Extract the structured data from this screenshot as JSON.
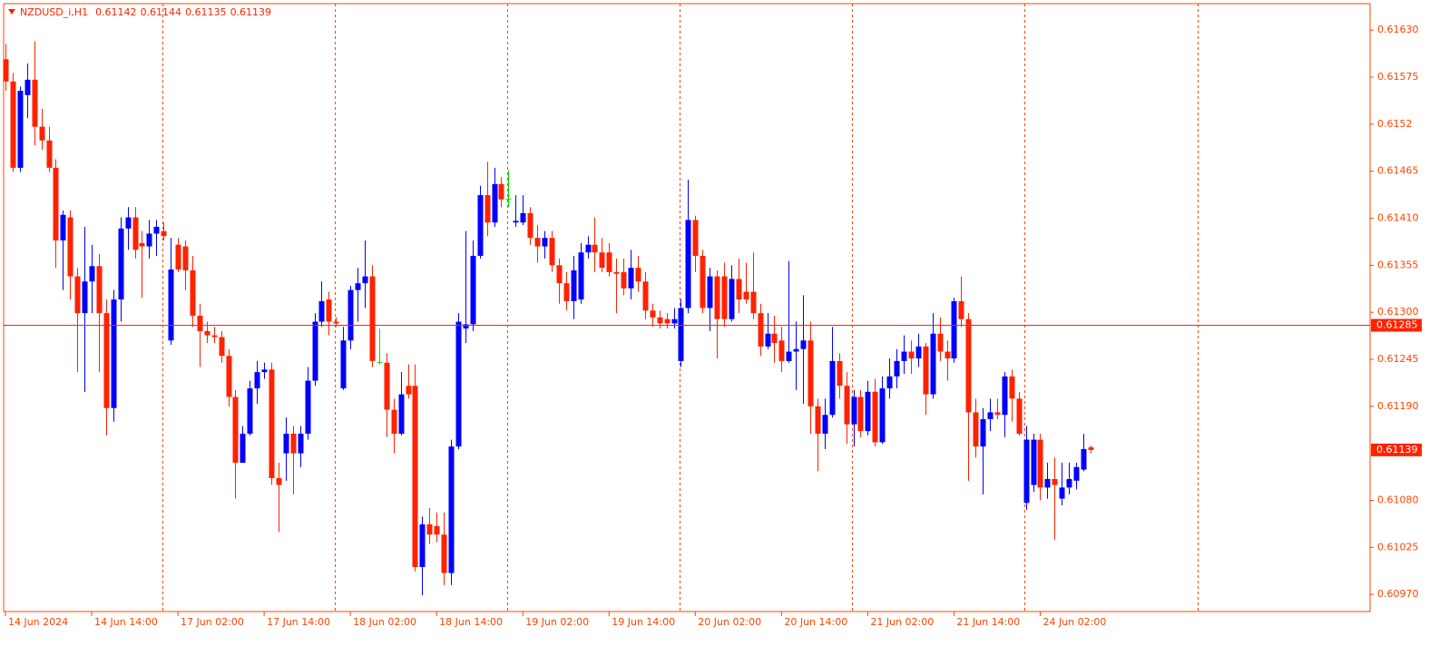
{
  "chart_data": {
    "type": "candlestick",
    "symbol": "NZDUSD_i,H1",
    "up_color": "#0000ff",
    "down_color": "#ff2200",
    "doji_color": "#00e000",
    "axis_color": "#ff4500",
    "separator_color": "#ff4500",
    "open": [
      0.61596,
      0.6157,
      0.61469,
      0.61554,
      0.61572,
      0.61517,
      0.61501,
      0.61469,
      0.61384,
      0.61411,
      0.61342,
      0.61299,
      0.61336,
      0.61354,
      0.61299,
      0.61188,
      0.61315,
      0.61398,
      0.61411,
      0.61381,
      0.61377,
      0.61392,
      0.61395,
      0.61267,
      0.61379,
      0.61377,
      0.61349,
      0.61296,
      0.61278,
      0.61273,
      0.61271,
      0.61249,
      0.61201,
      0.61124,
      0.61158,
      0.61211,
      0.6123,
      0.61233,
      0.61106,
      0.61135,
      0.61158,
      0.61135,
      0.61158,
      0.6122,
      0.61289,
      0.61315,
      0.61289,
      0.61211,
      0.61267,
      0.61326,
      0.61334,
      0.61342,
      0.61242,
      0.61241,
      0.61186,
      0.61158,
      0.61214,
      0.61214,
      0.61002,
      0.61052,
      0.6105,
      0.6104,
      0.60995,
      0.61143,
      0.61281,
      0.61286,
      0.61366,
      0.61437,
      0.61405,
      0.6145,
      0.61433,
      0.61405,
      0.61405,
      0.61416,
      0.61387,
      0.61377,
      0.61387,
      0.61355,
      0.61334,
      0.61313,
      0.61315,
      0.6137,
      0.61379,
      0.6137,
      0.6137,
      0.61347,
      0.61347,
      0.61328,
      0.61352,
      0.61336,
      0.61302,
      0.61294,
      0.61292,
      0.61287,
      0.61243,
      0.61305,
      0.61408,
      0.61366,
      0.61305,
      0.61342,
      0.61342,
      0.61292,
      0.61339,
      0.61324,
      0.61324,
      0.61299,
      0.6126,
      0.61275,
      0.61267,
      0.61243,
      0.61254,
      0.61257,
      0.61267,
      0.6119,
      0.61158,
      0.6118,
      0.61243,
      0.61214,
      0.61169,
      0.61201,
      0.61161,
      0.61207,
      0.61148,
      0.61211,
      0.61225,
      0.61243,
      0.61254,
      0.61246,
      0.6126,
      0.61204,
      0.61275,
      0.61254,
      0.61246,
      0.61313,
      0.61292,
      0.61183,
      0.61143,
      0.61175,
      0.61183,
      0.6118,
      0.61225,
      0.61199,
      0.61077,
      0.61098,
      0.61151,
      0.61095,
      0.61105,
      0.61082,
      0.61095,
      0.61103,
      0.61116,
      0.61142
    ],
    "high": [
      0.61614,
      0.6158,
      0.61564,
      0.61591,
      0.61617,
      0.61538,
      0.61517,
      0.61479,
      0.61419,
      0.61419,
      0.61352,
      0.614,
      0.61379,
      0.61368,
      0.61315,
      0.61326,
      0.61411,
      0.61423,
      0.61423,
      0.61395,
      0.61408,
      0.61408,
      0.61405,
      0.61387,
      0.61387,
      0.61384,
      0.61366,
      0.6131,
      0.61289,
      0.61283,
      0.61278,
      0.61257,
      0.61209,
      0.61167,
      0.6122,
      0.61243,
      0.61241,
      0.61241,
      0.61124,
      0.61177,
      0.61167,
      0.61167,
      0.61236,
      0.61299,
      0.61336,
      0.61324,
      0.61294,
      0.61283,
      0.61331,
      0.61352,
      0.61384,
      0.61355,
      0.61281,
      0.61252,
      0.61199,
      0.6123,
      0.61239,
      0.61239,
      0.61061,
      0.61071,
      0.61066,
      0.61066,
      0.61151,
      0.61299,
      0.61395,
      0.61384,
      0.61448,
      0.61476,
      0.61469,
      0.61458,
      0.61466,
      0.61437,
      0.61437,
      0.61423,
      0.61402,
      0.61395,
      0.61395,
      0.61363,
      0.61347,
      0.61366,
      0.61381,
      0.61389,
      0.61411,
      0.61387,
      0.61381,
      0.61363,
      0.61363,
      0.61373,
      0.61366,
      0.61347,
      0.6131,
      0.61302,
      0.61299,
      0.61305,
      0.61315,
      0.61455,
      0.61413,
      0.61373,
      0.61352,
      0.61349,
      0.61358,
      0.61355,
      0.61363,
      0.61358,
      0.6137,
      0.6131,
      0.61299,
      0.61296,
      0.61283,
      0.6136,
      0.61289,
      0.6132,
      0.61289,
      0.61199,
      0.61199,
      0.61283,
      0.61252,
      0.6123,
      0.61209,
      0.61209,
      0.6122,
      0.61222,
      0.61225,
      0.61246,
      0.61257,
      0.61273,
      0.61267,
      0.61275,
      0.61264,
      0.61299,
      0.61294,
      0.61267,
      0.61317,
      0.61342,
      0.61299,
      0.61199,
      0.61188,
      0.61199,
      0.61199,
      0.6123,
      0.61233,
      0.61207,
      0.61167,
      0.61158,
      0.61158,
      0.61124,
      0.6113,
      0.61124,
      0.61124,
      0.61124,
      0.61158,
      0.61144
    ],
    "low": [
      0.61559,
      0.61464,
      0.61464,
      0.61527,
      0.61495,
      0.6149,
      0.61464,
      0.61352,
      0.61326,
      0.61315,
      0.6123,
      0.61207,
      0.61299,
      0.6123,
      0.61156,
      0.61172,
      0.61289,
      0.61373,
      0.61363,
      0.61317,
      0.61363,
      0.61366,
      0.61384,
      0.61262,
      0.61347,
      0.61326,
      0.61283,
      0.61236,
      0.61264,
      0.61264,
      0.61241,
      0.6119,
      0.61082,
      0.61124,
      0.61156,
      0.61193,
      0.61222,
      0.61098,
      0.61043,
      0.61103,
      0.61087,
      0.61119,
      0.61151,
      0.61214,
      0.61283,
      0.61273,
      0.61283,
      0.61209,
      0.61257,
      0.61289,
      0.61305,
      0.61236,
      0.61239,
      0.61154,
      0.61135,
      0.61156,
      0.61199,
      0.60997,
      0.60969,
      0.61029,
      0.61031,
      0.60981,
      0.60981,
      0.6114,
      0.61264,
      0.61278,
      0.61363,
      0.61389,
      0.614,
      0.61423,
      0.61423,
      0.614,
      0.61402,
      0.61379,
      0.61358,
      0.61363,
      0.61347,
      0.6131,
      0.61302,
      0.61292,
      0.6131,
      0.61363,
      0.61347,
      0.61347,
      0.61342,
      0.61299,
      0.6132,
      0.61315,
      0.61324,
      0.61292,
      0.61283,
      0.61281,
      0.61281,
      0.61281,
      0.61236,
      0.61299,
      0.61347,
      0.61299,
      0.61278,
      0.61246,
      0.61283,
      0.61289,
      0.61299,
      0.6131,
      0.61292,
      0.61249,
      0.61257,
      0.61241,
      0.6123,
      0.61241,
      0.61209,
      0.61193,
      0.61158,
      0.61114,
      0.6114,
      0.61177,
      0.61199,
      0.61146,
      0.61143,
      0.61154,
      0.61156,
      0.61143,
      0.61146,
      0.61199,
      0.61211,
      0.61228,
      0.61228,
      0.61236,
      0.6118,
      0.61199,
      0.61243,
      0.6122,
      0.61241,
      0.61283,
      0.61103,
      0.6113,
      0.61087,
      0.61161,
      0.61175,
      0.61154,
      0.61172,
      0.61156,
      0.61069,
      0.6109,
      0.6108,
      0.61082,
      0.61034,
      0.61074,
      0.61087,
      0.61093,
      0.61114,
      0.61135
    ],
    "close": [
      0.6157,
      0.61469,
      0.61559,
      0.61572,
      0.61517,
      0.61501,
      0.61469,
      0.61384,
      0.61414,
      0.61342,
      0.61299,
      0.61336,
      0.61354,
      0.61299,
      0.61188,
      0.61315,
      0.61398,
      0.61411,
      0.61373,
      0.61377,
      0.61392,
      0.614,
      0.61389,
      0.6135,
      0.6135,
      0.61349,
      0.61296,
      0.61278,
      0.61273,
      0.61271,
      0.61249,
      0.61201,
      0.61124,
      0.61158,
      0.61211,
      0.6123,
      0.61233,
      0.61106,
      0.61098,
      0.61158,
      0.61135,
      0.61158,
      0.6122,
      0.61289,
      0.61313,
      0.61289,
      0.61287,
      0.61267,
      0.61326,
      0.61334,
      0.61342,
      0.61243,
      0.61242,
      0.61186,
      0.61158,
      0.61204,
      0.61204,
      0.61002,
      0.61052,
      0.6104,
      0.6104,
      0.60995,
      0.61143,
      0.61289,
      0.61286,
      0.61366,
      0.61437,
      0.61405,
      0.6145,
      0.61432,
      0.61433,
      0.61407,
      0.61416,
      0.61387,
      0.61377,
      0.61387,
      0.61355,
      0.61334,
      0.61313,
      0.61349,
      0.6137,
      0.61379,
      0.6137,
      0.61352,
      0.61347,
      0.61345,
      0.61328,
      0.61352,
      0.61336,
      0.61302,
      0.61294,
      0.61287,
      0.61287,
      0.61292,
      0.61305,
      0.61408,
      0.61366,
      0.61305,
      0.61342,
      0.61292,
      0.61292,
      0.61339,
      0.61315,
      0.61315,
      0.61299,
      0.6126,
      0.61275,
      0.61264,
      0.61243,
      0.61254,
      0.61257,
      0.61267,
      0.6119,
      0.61158,
      0.6118,
      0.61243,
      0.61214,
      0.61169,
      0.61201,
      0.61161,
      0.61207,
      0.61148,
      0.61211,
      0.61225,
      0.61243,
      0.61254,
      0.61246,
      0.6126,
      0.61204,
      0.61275,
      0.61254,
      0.61246,
      0.61313,
      0.61292,
      0.61183,
      0.61143,
      0.61175,
      0.61183,
      0.6118,
      0.61225,
      0.61199,
      0.61158,
      0.61151,
      0.61151,
      0.61095,
      0.61105,
      0.61098,
      0.61095,
      0.61105,
      0.61119,
      0.6114,
      0.61139
    ],
    "ylim": [
      0.6095,
      0.61661
    ],
    "yticks": [
      {
        "value": 0.6163,
        "label": "0.61630"
      },
      0.61575,
      0.6152,
      0.61465,
      {
        "value": 0.6141,
        "label": "0.61410"
      },
      0.61355,
      {
        "value": 0.613,
        "label": "0.61300"
      },
      0.61245,
      {
        "value": 0.6119,
        "label": "0.61190"
      },
      {
        "value": 0.6108,
        "label": "0.61080"
      },
      0.61025,
      {
        "value": 0.6097,
        "label": "0.60970"
      }
    ],
    "xlim": [
      -0.25,
      189.9
    ],
    "xticks": [
      {
        "value": 0,
        "label": "14 Jun 2024"
      },
      {
        "value": 12,
        "label": "14 Jun 14:00"
      },
      {
        "value": 24,
        "label": "17 Jun 02:00"
      },
      {
        "value": 36,
        "label": "17 Jun 14:00"
      },
      {
        "value": 48,
        "label": "18 Jun 02:00"
      },
      {
        "value": 60,
        "label": "18 Jun 14:00"
      },
      {
        "value": 72,
        "label": "19 Jun 02:00"
      },
      {
        "value": 84,
        "label": "19 Jun 14:00"
      },
      {
        "value": 96,
        "label": "20 Jun 02:00"
      },
      {
        "value": 108,
        "label": "20 Jun 14:00"
      },
      {
        "value": 120,
        "label": "21 Jun 02:00"
      },
      {
        "value": 132,
        "label": "21 Jun 14:00"
      },
      {
        "value": 144,
        "label": "24 Jun 02:00"
      }
    ],
    "separators": [
      21.85,
      45.85,
      69.85,
      93.85,
      117.85,
      141.85,
      165.85
    ],
    "hline": {
      "value": 0.61285,
      "color": "#ff2200"
    }
  }
}
